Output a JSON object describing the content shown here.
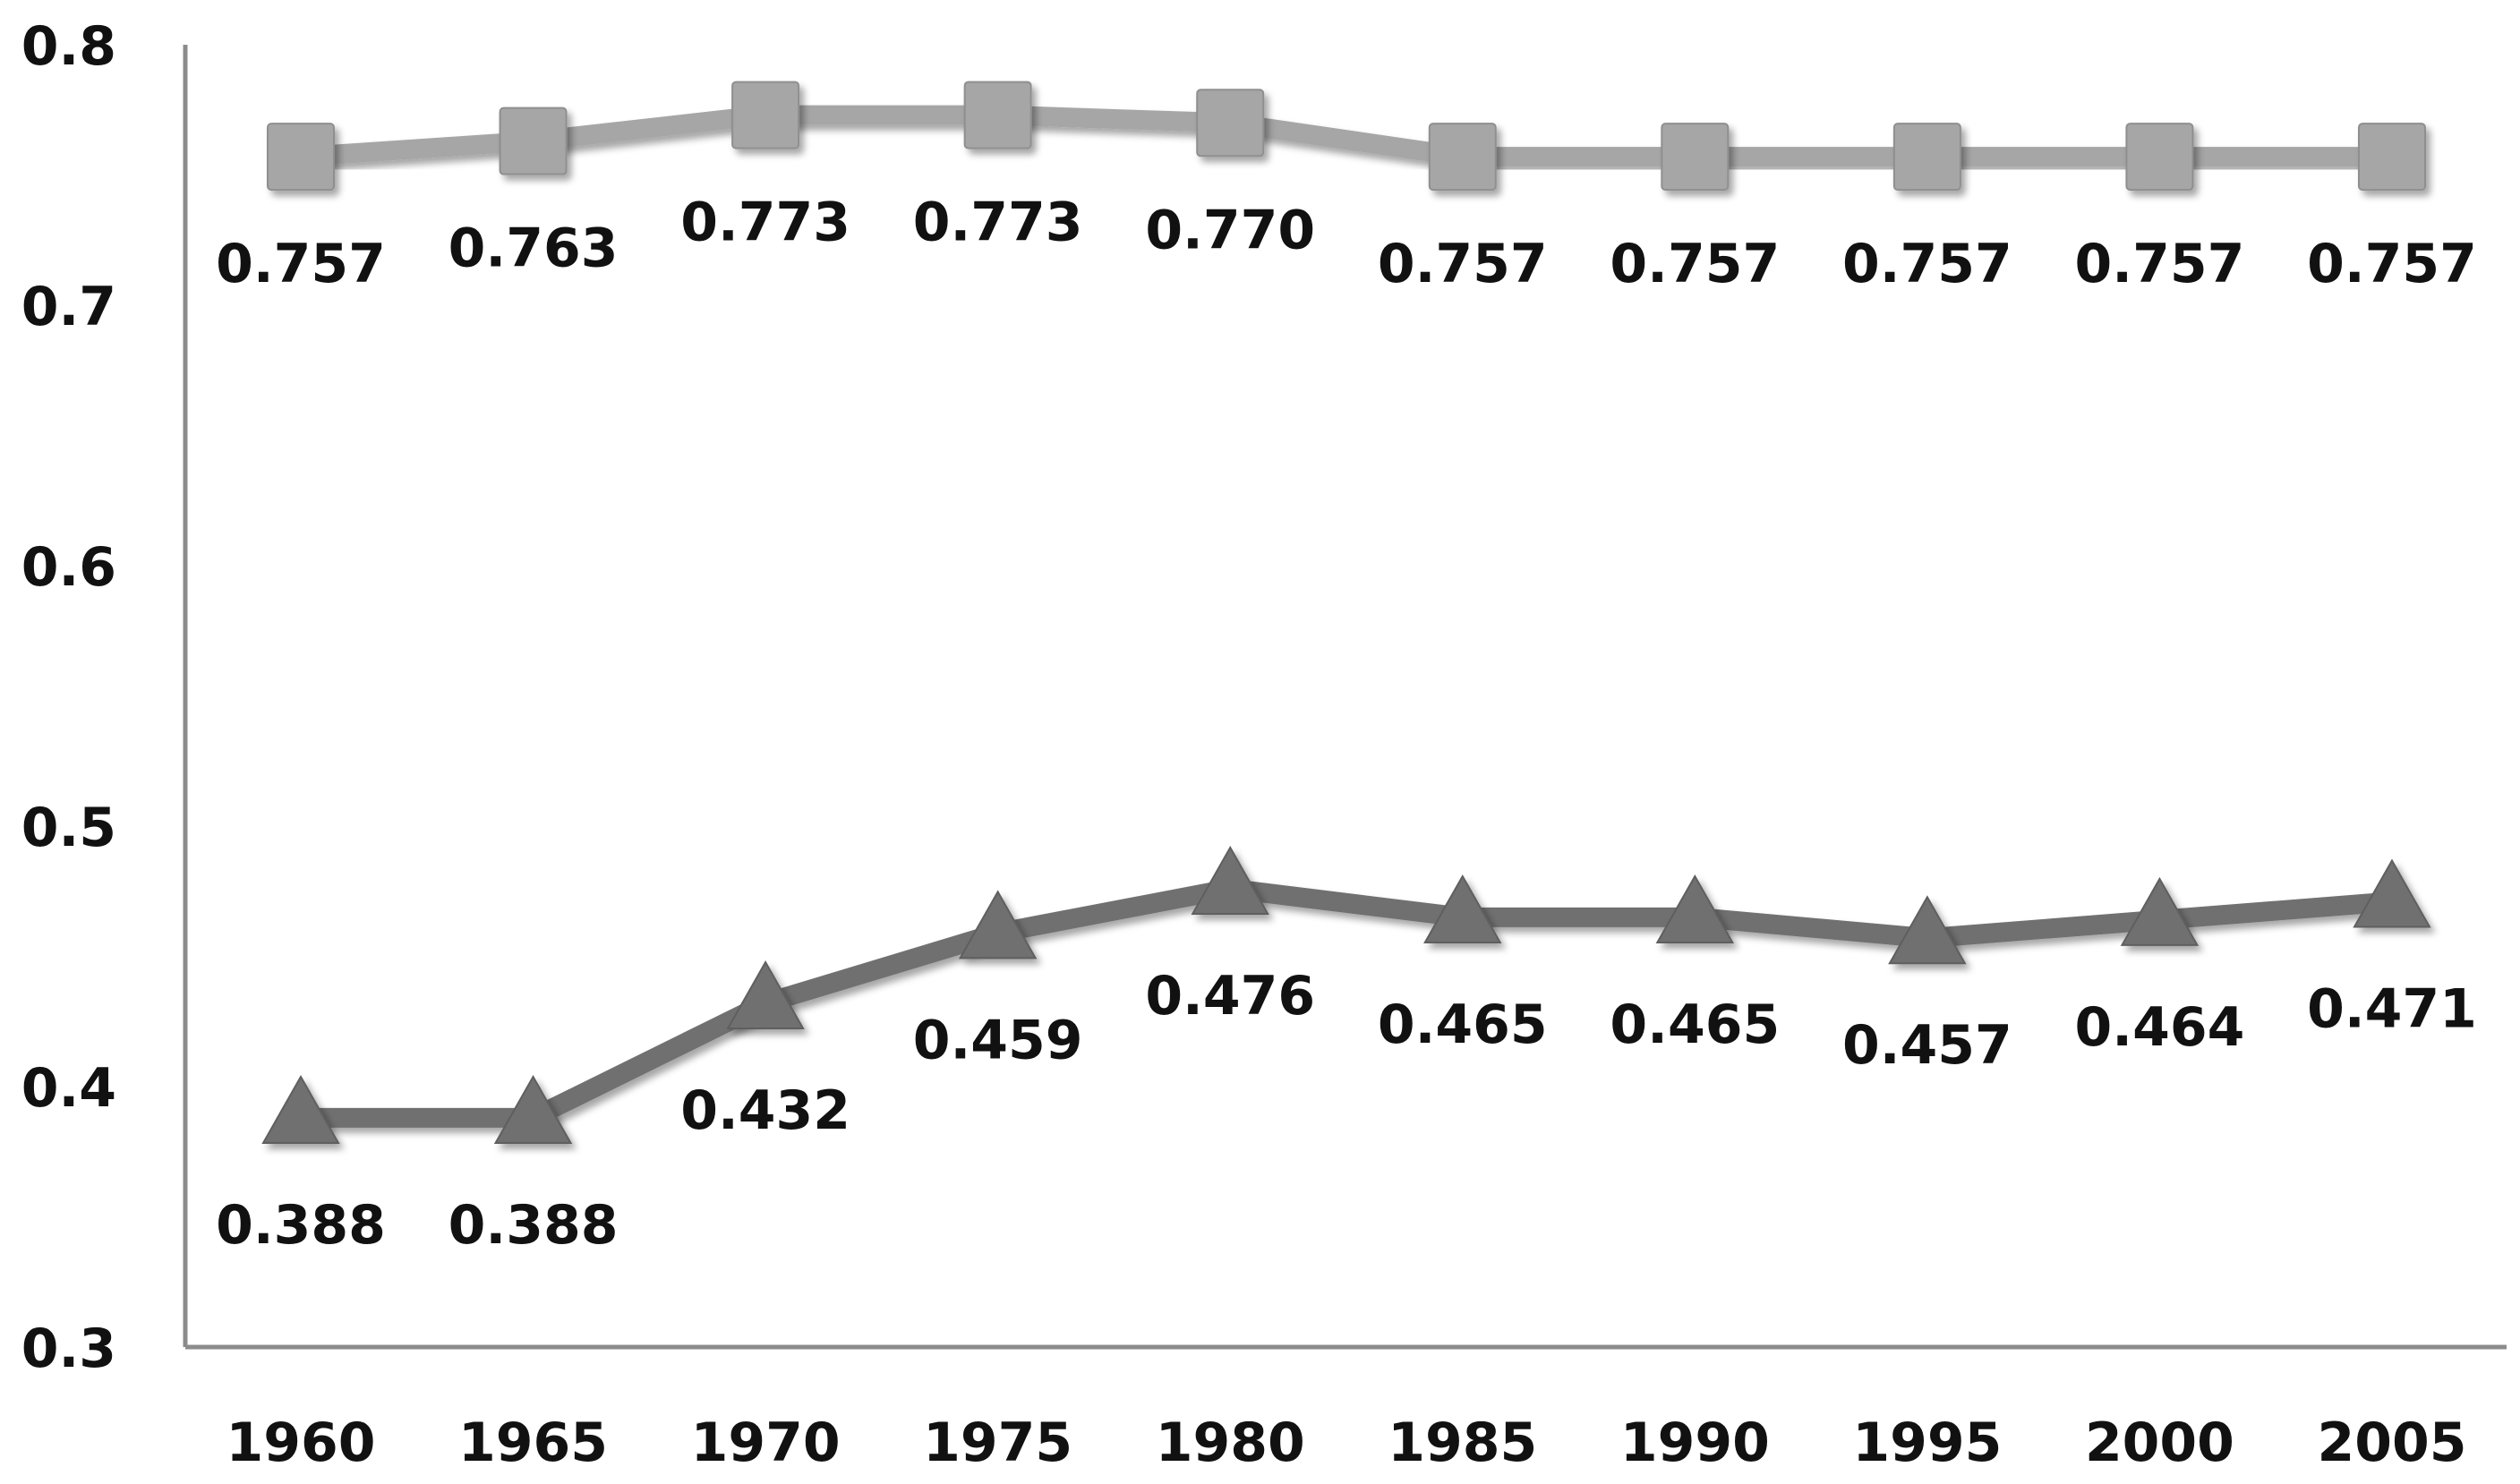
{
  "chart_data": {
    "type": "line",
    "title": "",
    "xlabel": "",
    "ylabel": "",
    "ylim": [
      0.3,
      0.8
    ],
    "yticks": [
      "0.3",
      "0.4",
      "0.5",
      "0.6",
      "0.7",
      "0.8"
    ],
    "categories": [
      "1960",
      "1965",
      "1970",
      "1975",
      "1980",
      "1985",
      "1990",
      "1995",
      "2000",
      "2005"
    ],
    "grid": false,
    "legend": "none",
    "series": [
      {
        "marker": "square",
        "color": "#a6a6a6",
        "label_position": "below",
        "values": [
          0.757,
          0.763,
          0.773,
          0.773,
          0.77,
          0.757,
          0.757,
          0.757,
          0.757,
          0.757
        ],
        "labels": [
          "0.757",
          "0.763",
          "0.773",
          "0.773",
          "0.770",
          "0.757",
          "0.757",
          "0.757",
          "0.757",
          "0.757"
        ]
      },
      {
        "marker": "triangle",
        "color": "#6f6f6f",
        "label_position": "below",
        "values": [
          0.388,
          0.388,
          0.432,
          0.459,
          0.476,
          0.465,
          0.465,
          0.457,
          0.464,
          0.471
        ],
        "labels": [
          "0.388",
          "0.388",
          "0.432",
          "0.459",
          "0.476",
          "0.465",
          "0.465",
          "0.457",
          "0.464",
          "0.471"
        ]
      }
    ]
  }
}
